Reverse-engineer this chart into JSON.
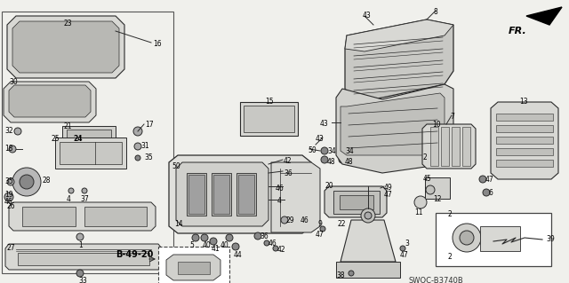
{
  "bg_color": "#f5f5f0",
  "diagram_code": "SWOC-B3740B",
  "fr_label": "FR.",
  "line_color": "#2a2a2a",
  "text_color": "#000000",
  "gray_fill": "#c8c8c8",
  "light_fill": "#e8e8e4",
  "mid_fill": "#d8d8d4"
}
